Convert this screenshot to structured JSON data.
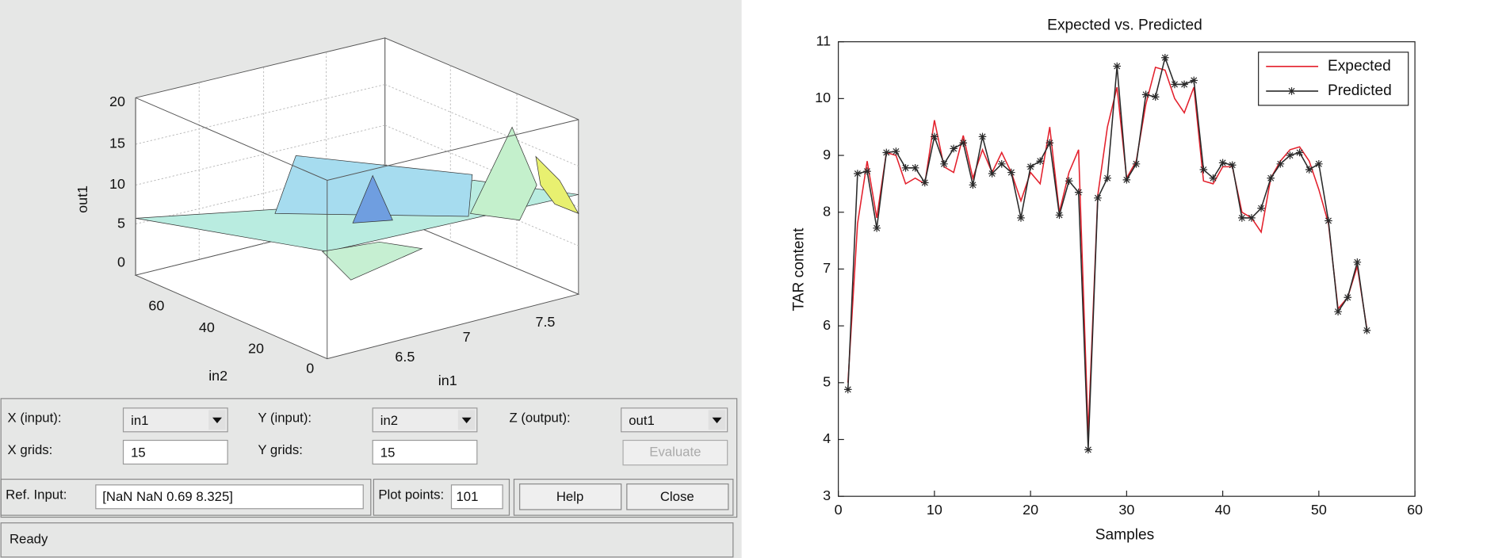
{
  "surface_viewer": {
    "z_axis_label": "out1",
    "x_axis_label": "in1",
    "y_axis_label": "in2",
    "z_ticks": [
      "0",
      "5",
      "10",
      "15",
      "20"
    ],
    "in1_ticks": [
      "6.5",
      "7",
      "7.5"
    ],
    "in2_ticks": [
      "0",
      "20",
      "40",
      "60"
    ]
  },
  "controls": {
    "x_input_label": "X (input):",
    "x_input_value": "in1",
    "y_input_label": "Y (input):",
    "y_input_value": "in2",
    "z_output_label": "Z (output):",
    "z_output_value": "out1",
    "x_grids_label": "X grids:",
    "x_grids_value": "15",
    "y_grids_label": "Y grids:",
    "y_grids_value": "15",
    "evaluate_button": "Evaluate",
    "ref_input_label": "Ref. Input:",
    "ref_input_value": "[NaN NaN 0.69 8.325]",
    "plot_points_label": "Plot points:",
    "plot_points_value": "101",
    "help_button": "Help",
    "close_button": "Close",
    "status": "Ready"
  },
  "chart_data": {
    "type": "line",
    "title": "Expected vs. Predicted",
    "x_label": "Samples",
    "y_label": "TAR content",
    "x": [
      1,
      2,
      3,
      4,
      5,
      6,
      7,
      8,
      9,
      10,
      11,
      12,
      13,
      14,
      15,
      16,
      17,
      18,
      19,
      20,
      21,
      22,
      23,
      24,
      25,
      26,
      27,
      28,
      29,
      30,
      31,
      32,
      33,
      34,
      35,
      36,
      37,
      38,
      39,
      40,
      41,
      42,
      43,
      44,
      45,
      46,
      47,
      48,
      49,
      50,
      51,
      52,
      53,
      54,
      55
    ],
    "series": [
      {
        "name": "Expected",
        "color": "#e3202c",
        "marker": "none",
        "values": [
          5.0,
          7.8,
          8.9,
          7.9,
          9.05,
          9.0,
          8.5,
          8.6,
          8.5,
          9.62,
          8.8,
          8.7,
          9.35,
          8.6,
          9.1,
          8.7,
          9.05,
          8.7,
          8.2,
          8.7,
          8.5,
          9.5,
          8.0,
          8.7,
          9.1,
          4.1,
          8.3,
          9.5,
          10.2,
          8.6,
          8.9,
          9.9,
          10.55,
          10.5,
          10.0,
          9.75,
          10.2,
          8.55,
          8.5,
          8.8,
          8.8,
          8.0,
          7.9,
          7.65,
          8.6,
          8.9,
          9.1,
          9.15,
          8.9,
          8.4,
          7.8,
          6.3,
          6.5,
          7.05,
          5.95
        ]
      },
      {
        "name": "Predicted",
        "color": "#2a2a2a",
        "marker": "*",
        "values": [
          4.88,
          8.68,
          8.72,
          7.72,
          9.05,
          9.07,
          8.78,
          8.78,
          8.52,
          9.33,
          8.85,
          9.12,
          9.22,
          8.48,
          9.33,
          8.68,
          8.85,
          8.7,
          7.9,
          8.8,
          8.9,
          9.22,
          7.95,
          8.55,
          8.35,
          3.82,
          8.25,
          8.6,
          10.57,
          8.57,
          8.85,
          10.07,
          10.03,
          10.72,
          10.25,
          10.25,
          10.32,
          8.75,
          8.6,
          8.87,
          8.83,
          7.9,
          7.9,
          8.07,
          8.6,
          8.85,
          9.0,
          9.05,
          8.75,
          8.85,
          7.85,
          6.25,
          6.5,
          7.12,
          5.92
        ]
      }
    ],
    "xlim": [
      0,
      60
    ],
    "xticks": [
      0,
      10,
      20,
      30,
      40,
      50,
      60
    ],
    "ylim": [
      3,
      11
    ],
    "yticks": [
      3,
      4,
      5,
      6,
      7,
      8,
      9,
      10,
      11
    ],
    "grid": false,
    "legend": "upper right"
  }
}
